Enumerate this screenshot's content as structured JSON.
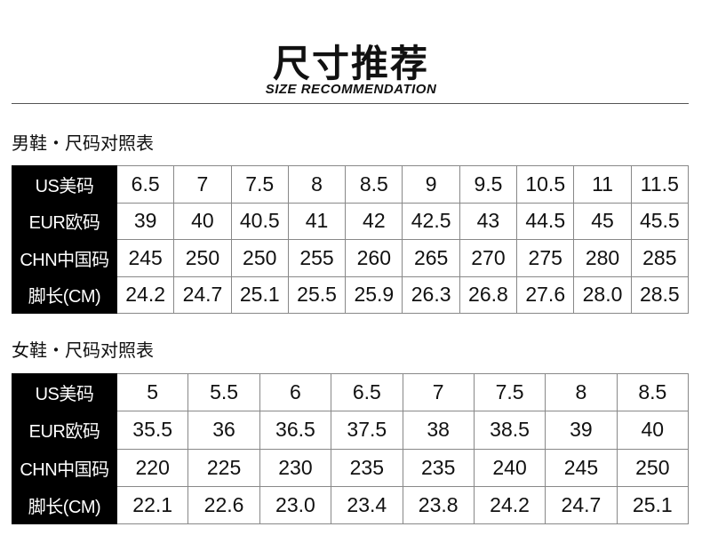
{
  "title": "尺寸推荐",
  "subtitle": "SIZE RECOMMENDATION",
  "men": {
    "label": "男鞋・尺码对照表",
    "rows": [
      {
        "header": "US美码",
        "values": [
          "6.5",
          "7",
          "7.5",
          "8",
          "8.5",
          "9",
          "9.5",
          "10.5",
          "11",
          "11.5"
        ]
      },
      {
        "header": "EUR欧码",
        "values": [
          "39",
          "40",
          "40.5",
          "41",
          "42",
          "42.5",
          "43",
          "44.5",
          "45",
          "45.5"
        ]
      },
      {
        "header": "CHN中国码",
        "values": [
          "245",
          "250",
          "250",
          "255",
          "260",
          "265",
          "270",
          "275",
          "280",
          "285"
        ]
      },
      {
        "header": "脚长(CM)",
        "values": [
          "24.2",
          "24.7",
          "25.1",
          "25.5",
          "25.9",
          "26.3",
          "26.8",
          "27.6",
          "28.0",
          "28.5"
        ]
      }
    ]
  },
  "women": {
    "label": "女鞋・尺码对照表",
    "rows": [
      {
        "header": "US美码",
        "values": [
          "5",
          "5.5",
          "6",
          "6.5",
          "7",
          "7.5",
          "8",
          "8.5"
        ]
      },
      {
        "header": "EUR欧码",
        "values": [
          "35.5",
          "36",
          "36.5",
          "37.5",
          "38",
          "38.5",
          "39",
          "40"
        ]
      },
      {
        "header": "CHN中国码",
        "values": [
          "220",
          "225",
          "230",
          "235",
          "235",
          "240",
          "245",
          "250"
        ]
      },
      {
        "header": "脚长(CM)",
        "values": [
          "22.1",
          "22.6",
          "23.0",
          "23.4",
          "23.8",
          "24.2",
          "24.7",
          "25.1"
        ]
      }
    ]
  }
}
